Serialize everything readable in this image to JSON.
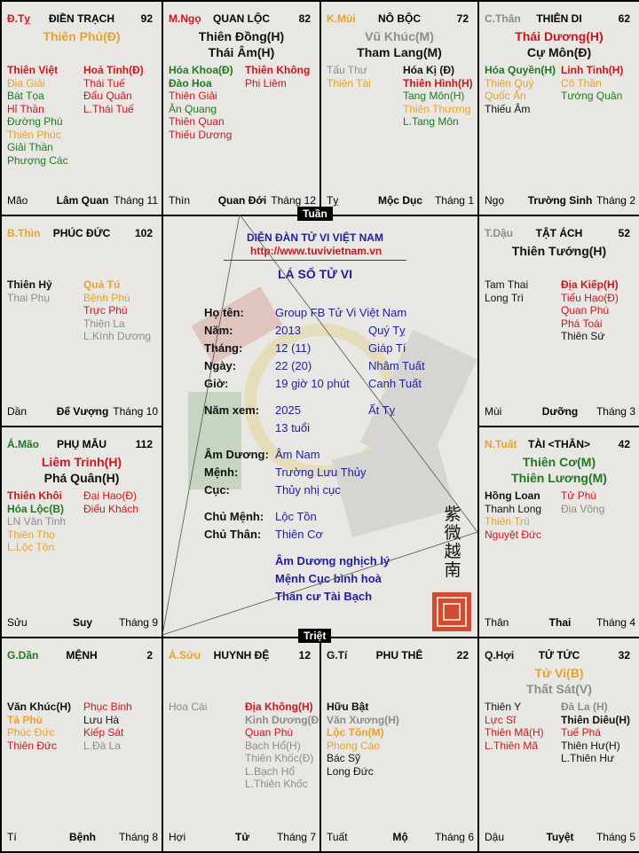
{
  "colors": {
    "red": "#d0141c",
    "orange": "#e9a228",
    "green": "#1e7a1e",
    "gray": "#8c8c8c",
    "black": "#111111",
    "blue": "#1f1fa0"
  },
  "palaces": [
    {
      "can_chi": "Đ.Tỵ",
      "cc_color": "red",
      "name": "ĐIỀN TRẠCH",
      "age": "92",
      "main": [
        {
          "t": "Thiên Phủ(Đ)",
          "c": "orange"
        }
      ],
      "left": [
        {
          "t": "Thiên Việt",
          "c": "red",
          "b": true
        },
        {
          "t": "Địa Giải",
          "c": "orange"
        },
        {
          "t": "Bát Tọa",
          "c": "green"
        },
        {
          "t": "Hỉ Thần",
          "c": "red"
        },
        {
          "t": "Đường Phù",
          "c": "green"
        },
        {
          "t": "Thiên Phúc",
          "c": "orange"
        },
        {
          "t": "Giải Thần",
          "c": "green"
        },
        {
          "t": "Phượng Các",
          "c": "green"
        }
      ],
      "right": [
        {
          "t": "Hoả Tinh(Đ)",
          "c": "red",
          "b": true
        },
        {
          "t": "Thái Tuế",
          "c": "red"
        },
        {
          "t": "Đẩu Quân",
          "c": "red"
        },
        {
          "t": "L.Thái Tuế",
          "c": "red"
        }
      ],
      "branch": "Mão",
      "stage": "Lâm Quan",
      "month": "Tháng 11"
    },
    {
      "can_chi": "M.Ngọ",
      "cc_color": "red",
      "name": "QUAN LỘC",
      "age": "82",
      "main": [
        {
          "t": "Thiên Đồng(H)",
          "c": "black"
        },
        {
          "t": "Thái Âm(H)",
          "c": "black"
        }
      ],
      "left": [
        {
          "t": "Hóa Khoa(Đ)",
          "c": "green",
          "b": true
        },
        {
          "t": "Đào Hoa",
          "c": "green",
          "b": true
        },
        {
          "t": "Thiên Giải",
          "c": "red"
        },
        {
          "t": "Ân Quang",
          "c": "green"
        },
        {
          "t": "Thiên Quan",
          "c": "red"
        },
        {
          "t": "Thiếu Dương",
          "c": "red"
        }
      ],
      "right": [
        {
          "t": "Thiên Không",
          "c": "red",
          "b": true
        },
        {
          "t": "Phi Liêm",
          "c": "red"
        }
      ],
      "branch": "Thìn",
      "stage": "Quan Đới",
      "month": "Tháng 12"
    },
    {
      "can_chi": "K.Mùi",
      "cc_color": "orange",
      "name": "NÔ BỘC",
      "age": "72",
      "main": [
        {
          "t": "Vũ Khúc(M)",
          "c": "gray"
        },
        {
          "t": "Tham Lang(M)",
          "c": "black"
        }
      ],
      "left": [
        {
          "t": "Tấu Thư",
          "c": "gray"
        },
        {
          "t": "Thiên Tài",
          "c": "orange"
        }
      ],
      "right": [
        {
          "t": "Hóa Kị (Đ)",
          "c": "black",
          "b": true
        },
        {
          "t": "Thiên Hình(H)",
          "c": "red",
          "b": true
        },
        {
          "t": "Tang Môn(H)",
          "c": "green"
        },
        {
          "t": "Thiên Thương",
          "c": "orange"
        },
        {
          "t": "L.Tang Môn",
          "c": "green"
        }
      ],
      "branch": "Tỵ",
      "stage": "Mộc Dục",
      "month": "Tháng 1"
    },
    {
      "can_chi": "C.Thân",
      "cc_color": "gray",
      "name": "THIÊN DI",
      "age": "62",
      "main": [
        {
          "t": "Thái Dương(H)",
          "c": "red"
        },
        {
          "t": "Cự Môn(Đ)",
          "c": "black"
        }
      ],
      "left": [
        {
          "t": "Hóa Quyền(H)",
          "c": "green",
          "b": true
        },
        {
          "t": "Thiên Quý",
          "c": "orange"
        },
        {
          "t": "Quốc Ấn",
          "c": "orange"
        },
        {
          "t": "Thiếu Âm",
          "c": "black"
        }
      ],
      "right": [
        {
          "t": "Linh Tinh(H)",
          "c": "red",
          "b": true
        },
        {
          "t": "Cô Thần",
          "c": "orange"
        },
        {
          "t": "Tướng Quân",
          "c": "green"
        }
      ],
      "branch": "Ngọ",
      "stage": "Trường Sinh",
      "month": "Tháng 2"
    },
    {
      "can_chi": "B.Thìn",
      "cc_color": "orange",
      "name": "PHÚC ĐỨC",
      "age": "102",
      "main": [],
      "left": [
        {
          "t": "Thiên Hỷ",
          "c": "black",
          "b": true
        },
        {
          "t": "Thai Phụ",
          "c": "gray"
        }
      ],
      "right": [
        {
          "t": "Quả Tú",
          "c": "orange",
          "b": true
        },
        {
          "t": "Bệnh Phù",
          "c": "orange"
        },
        {
          "t": "Trực Phù",
          "c": "red"
        },
        {
          "t": "Thiên La",
          "c": "gray"
        },
        {
          "t": "L.Kình Dương",
          "c": "gray"
        }
      ],
      "branch": "Dần",
      "stage": "Đế Vượng",
      "month": "Tháng 10"
    },
    {
      "can_chi": "T.Dậu",
      "cc_color": "gray",
      "name": "TẬT ÁCH",
      "age": "52",
      "main": [
        {
          "t": "Thiên Tướng(H)",
          "c": "black"
        }
      ],
      "left": [
        {
          "t": "Tam Thai",
          "c": "black"
        },
        {
          "t": "Long Trì",
          "c": "black"
        }
      ],
      "right": [
        {
          "t": "Địa Kiếp(H)",
          "c": "red",
          "b": true
        },
        {
          "t": "Tiểu Hao(Đ)",
          "c": "red"
        },
        {
          "t": "Quan Phù",
          "c": "red"
        },
        {
          "t": "Phá Toái",
          "c": "red"
        },
        {
          "t": "Thiên Sứ",
          "c": "black"
        }
      ],
      "branch": "Mùi",
      "stage": "Dưỡng",
      "month": "Tháng 3"
    },
    {
      "can_chi": "Á.Mão",
      "cc_color": "green",
      "name": "PHỤ MẪU",
      "age": "112",
      "main": [
        {
          "t": "Liêm Trinh(H)",
          "c": "red"
        },
        {
          "t": "Phá Quân(H)",
          "c": "black"
        }
      ],
      "left": [
        {
          "t": "Thiên Khôi",
          "c": "red",
          "b": true
        },
        {
          "t": "Hóa Lộc(B)",
          "c": "green",
          "b": true
        },
        {
          "t": "LN Văn Tinh",
          "c": "gray"
        },
        {
          "t": "Thiên Thọ",
          "c": "orange"
        },
        {
          "t": "L.Lộc Tồn",
          "c": "orange"
        }
      ],
      "right": [
        {
          "t": "Đại Hao(Đ)",
          "c": "red"
        },
        {
          "t": "Điếu Khách",
          "c": "red"
        }
      ],
      "branch": "Sửu",
      "stage": "Suy",
      "month": "Tháng 9"
    },
    {
      "can_chi": "N.Tuất",
      "cc_color": "orange",
      "name": "TÀI <THÂN>",
      "age": "42",
      "main": [
        {
          "t": "Thiên Cơ(M)",
          "c": "green"
        },
        {
          "t": "Thiên Lương(M)",
          "c": "green"
        }
      ],
      "left": [
        {
          "t": "Hồng Loan",
          "c": "black",
          "b": true
        },
        {
          "t": "Thanh Long",
          "c": "black"
        },
        {
          "t": "Thiên Trù",
          "c": "orange"
        },
        {
          "t": "Nguyệt Đức",
          "c": "red"
        }
      ],
      "right": [
        {
          "t": "Tử Phù",
          "c": "red"
        },
        {
          "t": "Địa Võng",
          "c": "gray"
        }
      ],
      "branch": "Thân",
      "stage": "Thai",
      "month": "Tháng 4"
    },
    {
      "can_chi": "G.Dần",
      "cc_color": "green",
      "name": "MỆNH",
      "age": "2",
      "main": [],
      "left": [
        {
          "t": "Văn Khúc(H)",
          "c": "black",
          "b": true
        },
        {
          "t": "Tả Phù",
          "c": "orange",
          "b": true
        },
        {
          "t": "Phúc Đức",
          "c": "orange"
        },
        {
          "t": "Thiên Đức",
          "c": "red"
        }
      ],
      "right": [
        {
          "t": "Phục Binh",
          "c": "red"
        },
        {
          "t": "Lưu Hà",
          "c": "black"
        },
        {
          "t": "Kiếp Sát",
          "c": "red"
        },
        {
          "t": "L.Đà La",
          "c": "gray"
        }
      ],
      "branch": "Tí",
      "stage": "Bệnh",
      "month": "Tháng 8"
    },
    {
      "can_chi": "Á.Sửu",
      "cc_color": "orange",
      "name": "HUYNH ĐỆ",
      "age": "12",
      "main": [],
      "left": [
        {
          "t": "Hoa Cái",
          "c": "gray"
        }
      ],
      "right": [
        {
          "t": "Địa Không(H)",
          "c": "red",
          "b": true
        },
        {
          "t": "Kình Dương(Đ)",
          "c": "gray",
          "b": true
        },
        {
          "t": "Quan Phù",
          "c": "red"
        },
        {
          "t": "Bạch Hổ(H)",
          "c": "gray"
        },
        {
          "t": "Thiên Khốc(Đ)",
          "c": "gray"
        },
        {
          "t": "L.Bạch Hổ",
          "c": "gray"
        },
        {
          "t": "L.Thiên Khốc",
          "c": "gray"
        }
      ],
      "branch": "Hợi",
      "stage": "Tử",
      "month": "Tháng 7"
    },
    {
      "can_chi": "G.Tí",
      "cc_color": "black",
      "name": "PHU THÊ",
      "age": "22",
      "main": [],
      "left": [
        {
          "t": "Hữu Bật",
          "c": "black",
          "b": true
        },
        {
          "t": "Văn Xương(H)",
          "c": "gray",
          "b": true
        },
        {
          "t": "Lộc Tồn(M)",
          "c": "orange",
          "b": true
        },
        {
          "t": "Phong Cáo",
          "c": "orange"
        },
        {
          "t": "Bác Sỹ",
          "c": "black"
        },
        {
          "t": "Long Đức",
          "c": "black"
        }
      ],
      "right": [],
      "branch": "Tuất",
      "stage": "Mộ",
      "month": "Tháng 6"
    },
    {
      "can_chi": "Q.Hợi",
      "cc_color": "black",
      "name": "TỬ TỨC",
      "age": "32",
      "main": [
        {
          "t": "Tử Vi(B)",
          "c": "orange"
        },
        {
          "t": "Thất Sát(V)",
          "c": "gray"
        }
      ],
      "left": [
        {
          "t": "Thiên Y",
          "c": "black"
        },
        {
          "t": "Lực Sĩ",
          "c": "red"
        },
        {
          "t": "Thiên Mã(H)",
          "c": "red"
        },
        {
          "t": "L.Thiên Mã",
          "c": "red"
        }
      ],
      "right": [
        {
          "t": "Đà La (H)",
          "c": "gray",
          "b": true
        },
        {
          "t": "Thiên Diêu(H)",
          "c": "black",
          "b": true
        },
        {
          "t": "Tuế Phá",
          "c": "red"
        },
        {
          "t": "Thiên Hư(H)",
          "c": "black"
        },
        {
          "t": "L.Thiên Hư",
          "c": "black"
        }
      ],
      "branch": "Dậu",
      "stage": "Tuyệt",
      "month": "Tháng 5"
    }
  ],
  "center": {
    "forum": "DIỄN ĐÀN TỬ VI VIỆT NAM",
    "url": "http://www.tuvivietnam.vn",
    "title": "LÁ SỐ TỬ VI",
    "tuan": "Tuần",
    "triet": "Triệt",
    "rows": [
      {
        "label": "Họ tên:",
        "value": "Group FB Tử Vi Việt Nam",
        "extra": ""
      },
      {
        "label": "Năm:",
        "value": "2013",
        "extra": "Quý Tỵ"
      },
      {
        "label": "Tháng:",
        "value": "12 (11)",
        "extra": "Giáp Tí"
      },
      {
        "label": "Ngày:",
        "value": "22 (20)",
        "extra": "Nhâm Tuất"
      },
      {
        "label": "Giờ:",
        "value": "19 giờ 10 phút",
        "extra": "Canh Tuất"
      },
      {
        "label": "Năm xem:",
        "value": "2025",
        "extra": "Ất Tỵ"
      },
      {
        "label": "",
        "value": "13 tuổi",
        "extra": ""
      },
      {
        "label": "Âm Dương:",
        "value": "Âm Nam",
        "extra": ""
      },
      {
        "label": "Mệnh:",
        "value": "Trường Lưu Thủy",
        "extra": ""
      },
      {
        "label": "Cục:",
        "value": "Thủy nhị cục",
        "extra": ""
      },
      {
        "label": "Chủ Mệnh:",
        "value": "Lộc Tồn",
        "extra": ""
      },
      {
        "label": "Chủ Thân:",
        "value": "Thiên Cơ",
        "extra": ""
      }
    ],
    "notes": [
      "Âm Dương nghịch lý",
      "Mệnh Cục bình hoà",
      "Thân cư Tài Bạch"
    ],
    "seal_chars": [
      "紫",
      "微",
      "越",
      "南"
    ]
  }
}
